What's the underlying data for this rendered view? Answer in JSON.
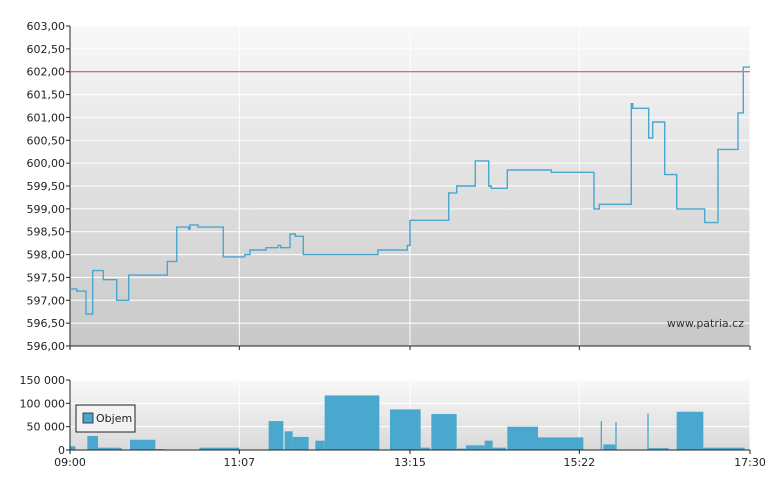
{
  "watermark": "www.patria.cz",
  "chart_data": [
    {
      "type": "line",
      "ylim": [
        596.0,
        603.0
      ],
      "yticks": [
        "596,00",
        "596,50",
        "597,00",
        "597,50",
        "598,00",
        "598,50",
        "599,00",
        "599,50",
        "600,00",
        "600,50",
        "601,00",
        "601,50",
        "602,00",
        "602,50",
        "603,00"
      ],
      "xlim": [
        "09:00",
        "17:30"
      ],
      "reference_line": 602.0,
      "colors": {
        "line": "#4aa8cf",
        "reference": "#d23a3a"
      },
      "series": [
        {
          "x": [
            "09:00",
            "09:04",
            "09:05",
            "09:10",
            "09:12",
            "09:13",
            "09:16",
            "09:17",
            "09:25",
            "09:35",
            "09:36",
            "09:39",
            "09:44",
            "10:00",
            "10:13",
            "10:20",
            "10:29",
            "10:30",
            "10:36",
            "10:55",
            "11:01",
            "11:11",
            "11:15",
            "11:20",
            "11:24",
            "11:27",
            "11:36",
            "11:38",
            "11:45",
            "11:49",
            "11:55",
            "12:51",
            "13:13",
            "13:15",
            "13:38",
            "13:44",
            "13:49",
            "13:50",
            "13:53",
            "14:04",
            "14:05",
            "14:14",
            "14:16",
            "14:27",
            "14:28",
            "14:50",
            "15:01",
            "15:02",
            "15:17",
            "15:18",
            "15:19",
            "15:20",
            "15:25",
            "15:33",
            "15:37",
            "15:38",
            "15:39",
            "15:40",
            "15:41",
            "15:55",
            "16:01",
            "16:02",
            "16:13",
            "16:14",
            "16:17",
            "16:19",
            "16:22",
            "16:26",
            "16:35",
            "16:45",
            "16:46",
            "16:55",
            "16:56",
            "17:01",
            "17:02",
            "17:03",
            "17:06",
            "17:12",
            "17:16",
            "17:20",
            "17:21",
            "17:22",
            "17:23",
            "17:25",
            "17:30"
          ],
          "y": [
            597.25,
            597.25,
            597.2,
            597.2,
            596.7,
            596.7,
            596.7,
            597.65,
            597.45,
            597.0,
            597.0,
            597.0,
            597.55,
            597.55,
            597.85,
            598.6,
            598.55,
            598.65,
            598.6,
            597.95,
            597.95,
            598.0,
            598.1,
            598.1,
            598.1,
            598.15,
            598.2,
            598.15,
            598.45,
            598.4,
            598.0,
            598.1,
            598.2,
            598.75,
            598.75,
            599.35,
            599.35,
            599.5,
            599.5,
            600.05,
            600.05,
            599.5,
            599.45,
            599.45,
            599.85,
            599.85,
            599.8,
            599.8,
            599.8,
            599.8,
            599.8,
            599.8,
            599.8,
            599.0,
            599.1,
            599.1,
            599.1,
            599.1,
            599.1,
            599.1,
            601.3,
            601.2,
            601.2,
            600.55,
            600.9,
            600.9,
            600.9,
            599.75,
            599.0,
            599.0,
            599.0,
            599.0,
            598.7,
            598.7,
            598.7,
            598.7,
            600.3,
            600.3,
            600.3,
            600.3,
            601.1,
            601.1,
            601.1,
            602.1,
            602.1
          ]
        }
      ]
    },
    {
      "type": "bar",
      "ylim": [
        0,
        150000
      ],
      "yticks": [
        "0",
        "50 000",
        "100 000",
        "150 000"
      ],
      "xticks": [
        "09:00",
        "11:07",
        "13:15",
        "15:22",
        "17:30"
      ],
      "xlim": [
        "09:00",
        "17:30"
      ],
      "colors": {
        "bar": "#4aa8cf"
      },
      "series": [
        {
          "name": "Objem",
          "bars": [
            {
              "start": "09:00",
              "end": "09:04",
              "value": 8000
            },
            {
              "start": "09:13",
              "end": "09:21",
              "value": 30000
            },
            {
              "start": "09:21",
              "end": "09:37",
              "value": 5000
            },
            {
              "start": "09:37",
              "end": "09:39",
              "value": 4000
            },
            {
              "start": "09:45",
              "end": "10:04",
              "value": 22000
            },
            {
              "start": "10:04",
              "end": "10:11",
              "value": 2000
            },
            {
              "start": "10:37",
              "end": "11:07",
              "value": 5000
            },
            {
              "start": "11:29",
              "end": "11:40",
              "value": 62000
            },
            {
              "start": "11:41",
              "end": "11:47",
              "value": 40000
            },
            {
              "start": "11:47",
              "end": "11:59",
              "value": 28000
            },
            {
              "start": "12:04",
              "end": "12:11",
              "value": 20000
            },
            {
              "start": "12:11",
              "end": "12:42",
              "value": 117000
            },
            {
              "start": "12:42",
              "end": "12:52",
              "value": 117000
            },
            {
              "start": "13:00",
              "end": "13:23",
              "value": 87000
            },
            {
              "start": "13:23",
              "end": "13:30",
              "value": 5000
            },
            {
              "start": "13:31",
              "end": "13:50",
              "value": 77000
            },
            {
              "start": "13:50",
              "end": "13:57",
              "value": 3000
            },
            {
              "start": "13:57",
              "end": "14:11",
              "value": 10000
            },
            {
              "start": "14:11",
              "end": "14:17",
              "value": 20000
            },
            {
              "start": "14:17",
              "end": "14:27",
              "value": 5000
            },
            {
              "start": "14:28",
              "end": "14:51",
              "value": 50000
            },
            {
              "start": "14:51",
              "end": "15:25",
              "value": 27000
            },
            {
              "start": "15:38",
              "end": "15:39",
              "value": 62000
            },
            {
              "start": "15:40",
              "end": "15:49",
              "value": 12000
            },
            {
              "start": "15:49",
              "end": "15:50",
              "value": 60000
            },
            {
              "start": "16:13",
              "end": "16:14",
              "value": 78000
            },
            {
              "start": "16:14",
              "end": "16:29",
              "value": 4000
            },
            {
              "start": "16:35",
              "end": "16:55",
              "value": 82000
            },
            {
              "start": "16:55",
              "end": "17:26",
              "value": 5000
            }
          ]
        }
      ]
    }
  ]
}
